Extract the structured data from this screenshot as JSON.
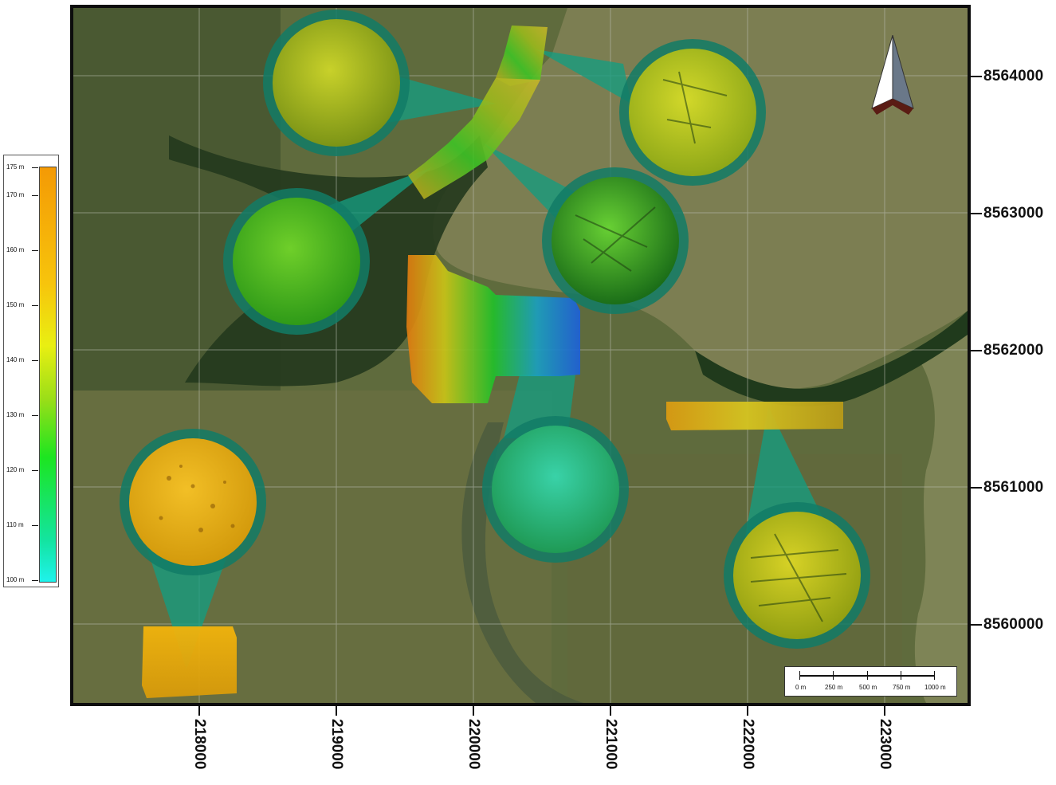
{
  "map": {
    "northing_labels": [
      "8564000",
      "8563000",
      "8562000",
      "8561000",
      "8560000"
    ],
    "easting_labels": [
      "218000",
      "219000",
      "220000",
      "221000",
      "222000",
      "223000"
    ],
    "legend": {
      "labels": [
        "175 m",
        "170 m",
        "160 m",
        "150 m",
        "140 m",
        "130 m",
        "120 m",
        "110 m",
        "100 m"
      ],
      "colors": [
        "#f49a05",
        "#f7c40c",
        "#e9ef12",
        "#9ade18",
        "#1ce520",
        "#13e4a0",
        "#1ff2ec"
      ]
    },
    "scalebar": {
      "labels": [
        "0 m",
        "250 m",
        "500 m",
        "750 m",
        "1000 m"
      ]
    },
    "north_arrow_icon": "north-arrow-icon",
    "colors": {
      "lake": "#7c7e52",
      "terrain": "#5d6a3c",
      "forest": "#27401f",
      "callout": "#15a07f"
    }
  }
}
